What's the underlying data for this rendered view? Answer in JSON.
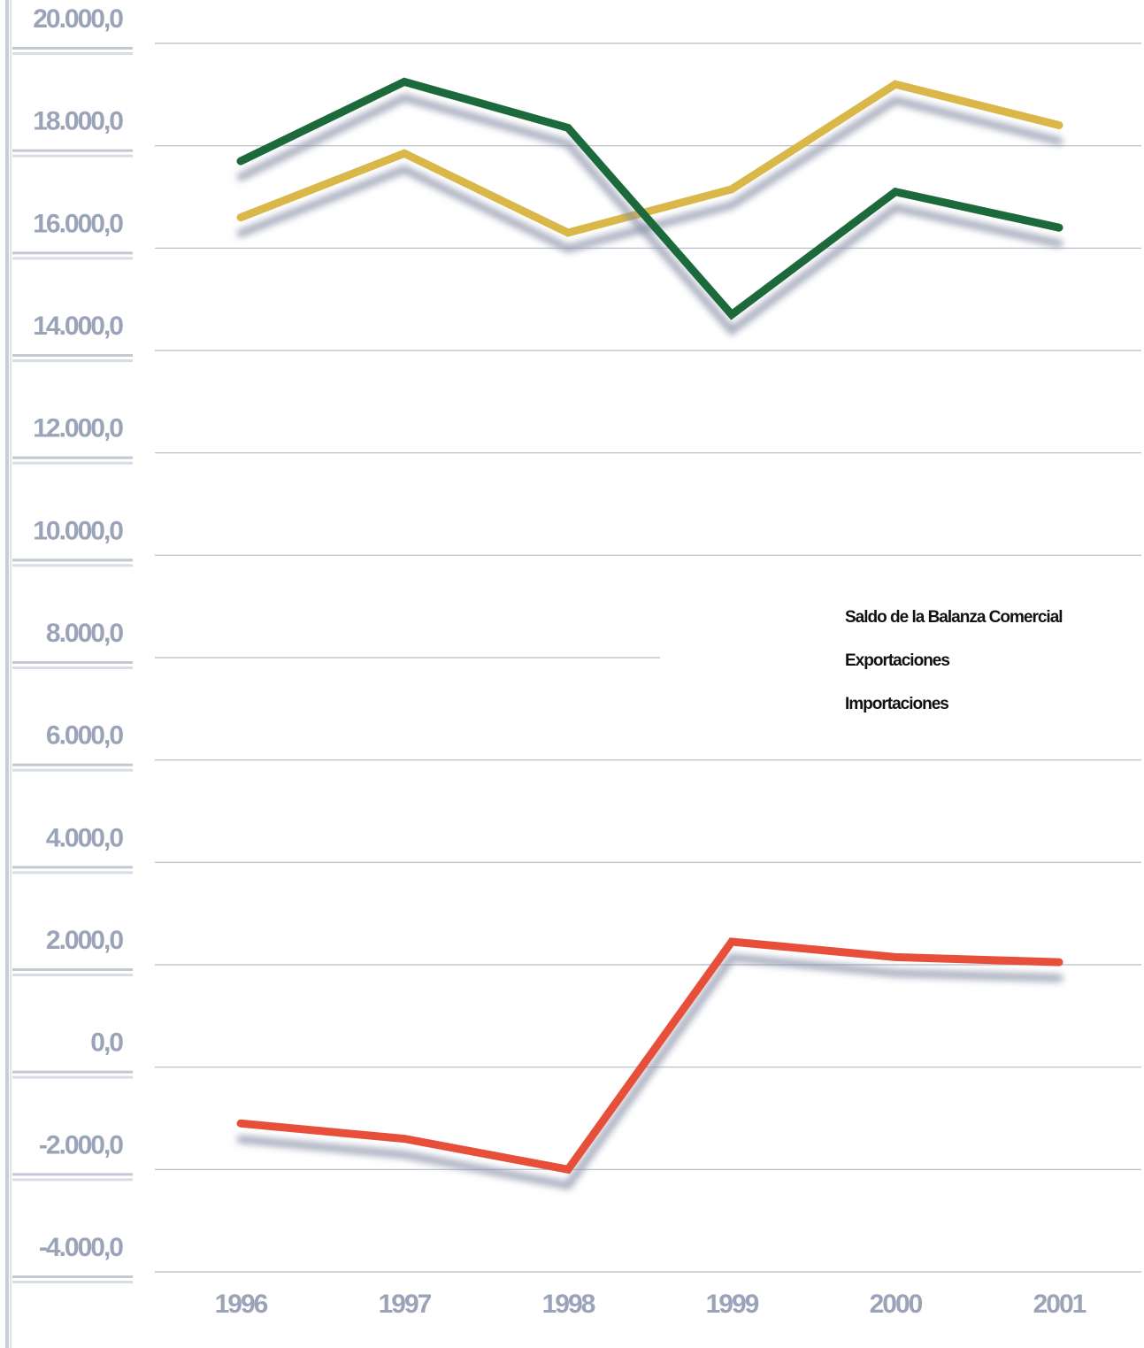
{
  "chart_data": {
    "type": "line",
    "categories": [
      "1996",
      "1997",
      "1998",
      "1999",
      "2000",
      "2001"
    ],
    "series": [
      {
        "name": "Saldo de la Balanza Comercial",
        "color": "#e8503a",
        "values": [
          -1100,
          -1400,
          -2000,
          2450,
          2150,
          2050
        ]
      },
      {
        "name": "Exportaciones",
        "color": "#d9b84a",
        "values": [
          16600,
          17850,
          16300,
          17150,
          19200,
          18400
        ]
      },
      {
        "name": "Importaciones",
        "color": "#1e6b3a",
        "values": [
          17700,
          19250,
          18350,
          14700,
          17100,
          16400
        ]
      }
    ],
    "ylim": [
      -4000,
      20000
    ],
    "yticks": [
      {
        "value": 20000,
        "label": "20.000,0"
      },
      {
        "value": 18000,
        "label": "18.000,0"
      },
      {
        "value": 16000,
        "label": "16.000,0"
      },
      {
        "value": 14000,
        "label": "14.000,0"
      },
      {
        "value": 12000,
        "label": "12.000,0"
      },
      {
        "value": 10000,
        "label": "10.000,0"
      },
      {
        "value": 8000,
        "label": "8.000,0"
      },
      {
        "value": 6000,
        "label": "6.000,0"
      },
      {
        "value": 4000,
        "label": "4.000,0"
      },
      {
        "value": 2000,
        "label": "2.000,0"
      },
      {
        "value": 0,
        "label": "0,0"
      },
      {
        "value": -2000,
        "label": "-2.000,0"
      },
      {
        "value": -4000,
        "label": "-4.000,0"
      }
    ],
    "grid": true,
    "legend": "right"
  }
}
